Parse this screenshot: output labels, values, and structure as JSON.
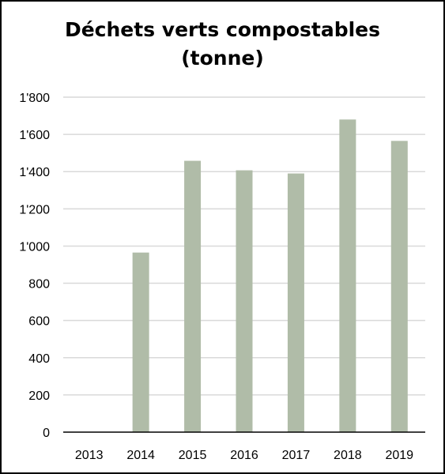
{
  "chart_data": {
    "type": "bar",
    "title": "Déchets verts compostables",
    "subtitle": "(tonne)",
    "categories": [
      "2013",
      "2014",
      "2015",
      "2016",
      "2017",
      "2018",
      "2019"
    ],
    "values": [
      0,
      965,
      1458,
      1407,
      1390,
      1680,
      1565
    ],
    "ylim": [
      0,
      1800
    ],
    "yticks": [
      0,
      200,
      400,
      600,
      800,
      1000,
      1200,
      1400,
      1600,
      1800
    ],
    "ytick_labels": [
      "0",
      "200",
      "400",
      "600",
      "800",
      "1'000",
      "1'200",
      "1'400",
      "1'600",
      "1'800"
    ],
    "grid": true,
    "legend": "none",
    "colors": {
      "bar": "#b0bca8",
      "grid": "#d9d9d9",
      "axis": "#000000",
      "border": "#000000"
    }
  }
}
